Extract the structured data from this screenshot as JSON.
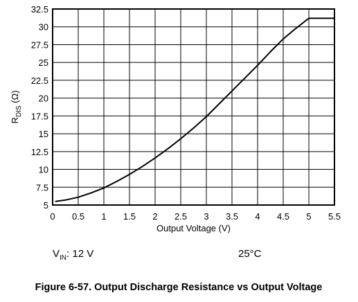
{
  "chart_data": {
    "type": "line",
    "xlabel": "Output Voltage (V)",
    "ylabel": {
      "main": "R",
      "sub": "DIS",
      "unit": " (Ω)"
    },
    "xlim": [
      0,
      5.5
    ],
    "ylim": [
      5,
      32.5
    ],
    "x_ticks": [
      "0",
      "0.5",
      "1",
      "1.5",
      "2",
      "2.5",
      "3",
      "3.5",
      "4",
      "4.5",
      "5",
      "5.5"
    ],
    "y_ticks": [
      "5",
      "7.5",
      "10",
      "12.5",
      "15",
      "17.5",
      "20",
      "22.5",
      "25",
      "27.5",
      "30",
      "32.5"
    ],
    "grid": true,
    "series": [
      {
        "x": [
          0.05,
          0.25,
          0.5,
          0.75,
          1.0,
          1.25,
          1.5,
          1.75,
          2.0,
          2.25,
          2.5,
          2.75,
          3.0,
          3.25,
          3.5,
          3.75,
          4.0,
          4.25,
          4.5,
          4.75,
          5.0,
          5.25,
          5.5
        ],
        "values": [
          5.5,
          5.7,
          6.1,
          6.7,
          7.4,
          8.3,
          9.3,
          10.4,
          11.6,
          12.9,
          14.3,
          15.8,
          17.4,
          19.2,
          21.0,
          22.8,
          24.6,
          26.5,
          28.3,
          29.8,
          31.2,
          31.2,
          31.2
        ]
      }
    ]
  },
  "conditions": {
    "vin_main": "V",
    "vin_sub": "IN",
    "vin_rest": ": 12 V",
    "temperature": "25°C"
  },
  "caption": "Figure 6-57. Output Discharge Resistance vs Output Voltage",
  "colors": {
    "line": "#000000",
    "grid": "#000000",
    "background": "#ffffff"
  }
}
